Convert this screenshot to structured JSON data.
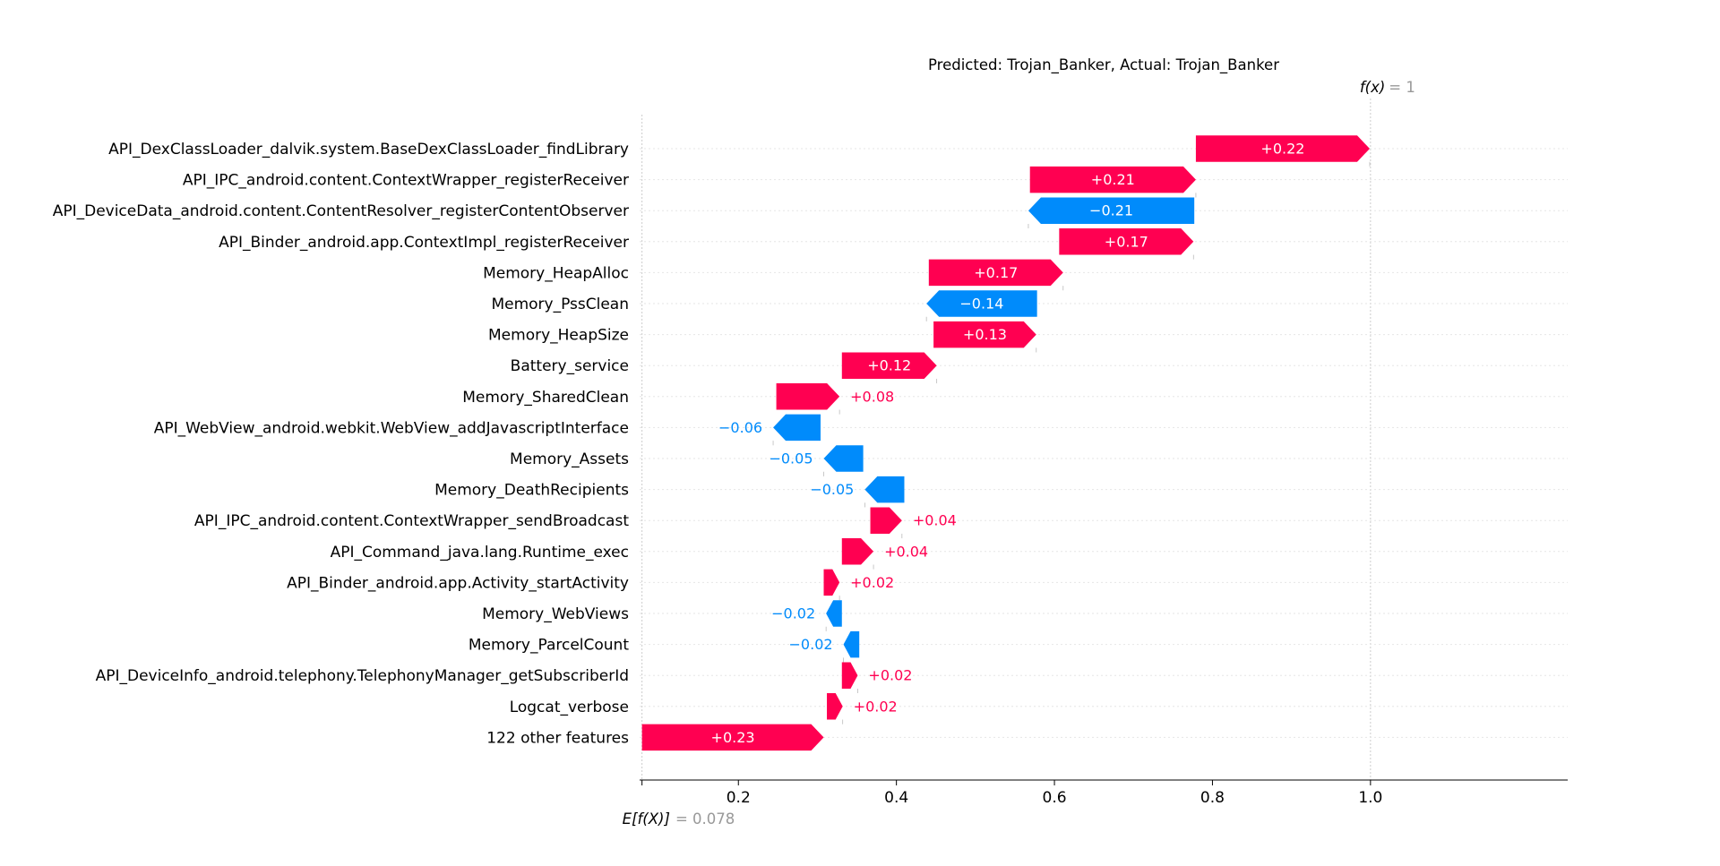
{
  "chart_data": {
    "type": "waterfall",
    "title": "Predicted: Trojan_Banker, Actual: Trojan_Banker",
    "base_value": 0.078,
    "base_label": "E[f(X)]",
    "base_value_text": "= 0.078",
    "output_value": 1,
    "output_label": "f(x)",
    "output_value_text": "= 1",
    "xlim": [
      0.075,
      1.15
    ],
    "xticks": [
      0.2,
      0.4,
      0.6,
      0.8,
      1.0
    ],
    "xtick_labels": [
      "0.2",
      "0.4",
      "0.6",
      "0.8",
      "1.0"
    ],
    "colors": {
      "positive": "#ff0051",
      "negative": "#008bfb",
      "grid": "#cccccc",
      "note": "#999999"
    },
    "features": [
      {
        "name": "API_DexClassLoader_dalvik.system.BaseDexClassLoader_findLibrary",
        "value": 0.22,
        "label": "+0.22",
        "start": 0.779
      },
      {
        "name": "API_IPC_android.content.ContextWrapper_registerReceiver",
        "value": 0.21,
        "label": "+0.21",
        "start": 0.569
      },
      {
        "name": "API_DeviceData_android.content.ContentResolver_registerContentObserver",
        "value": -0.21,
        "label": "−0.21",
        "start": 0.777
      },
      {
        "name": "API_Binder_android.app.ContextImpl_registerReceiver",
        "value": 0.17,
        "label": "+0.17",
        "start": 0.606
      },
      {
        "name": "Memory_HeapAlloc",
        "value": 0.17,
        "label": "+0.17",
        "start": 0.441
      },
      {
        "name": "Memory_PssClean",
        "value": -0.14,
        "label": "−0.14",
        "start": 0.578
      },
      {
        "name": "Memory_HeapSize",
        "value": 0.13,
        "label": "+0.13",
        "start": 0.447
      },
      {
        "name": "Battery_service",
        "value": 0.12,
        "label": "+0.12",
        "start": 0.331
      },
      {
        "name": "Memory_SharedClean",
        "value": 0.08,
        "label": "+0.08",
        "start": 0.248
      },
      {
        "name": "API_WebView_android.webkit.WebView_addJavascriptInterface",
        "value": -0.06,
        "label": "−0.06",
        "start": 0.304
      },
      {
        "name": "Memory_Assets",
        "value": -0.05,
        "label": "−0.05",
        "start": 0.358
      },
      {
        "name": "Memory_DeathRecipients",
        "value": -0.05,
        "label": "−0.05",
        "start": 0.41
      },
      {
        "name": "API_IPC_android.content.ContextWrapper_sendBroadcast",
        "value": 0.04,
        "label": "+0.04",
        "start": 0.367
      },
      {
        "name": "API_Command_java.lang.Runtime_exec",
        "value": 0.04,
        "label": "+0.04",
        "start": 0.331
      },
      {
        "name": "API_Binder_android.app.Activity_startActivity",
        "value": 0.02,
        "label": "+0.02",
        "start": 0.308
      },
      {
        "name": "Memory_WebViews",
        "value": -0.02,
        "label": "−0.02",
        "start": 0.331
      },
      {
        "name": "Memory_ParcelCount",
        "value": -0.02,
        "label": "−0.02",
        "start": 0.353
      },
      {
        "name": "API_DeviceInfo_android.telephony.TelephonyManager_getSubscriberId",
        "value": 0.02,
        "label": "+0.02",
        "start": 0.331
      },
      {
        "name": "Logcat_verbose",
        "value": 0.02,
        "label": "+0.02",
        "start": 0.312
      },
      {
        "name": "122 other features",
        "value": 0.23,
        "label": "+0.23",
        "start": 0.078
      }
    ]
  }
}
